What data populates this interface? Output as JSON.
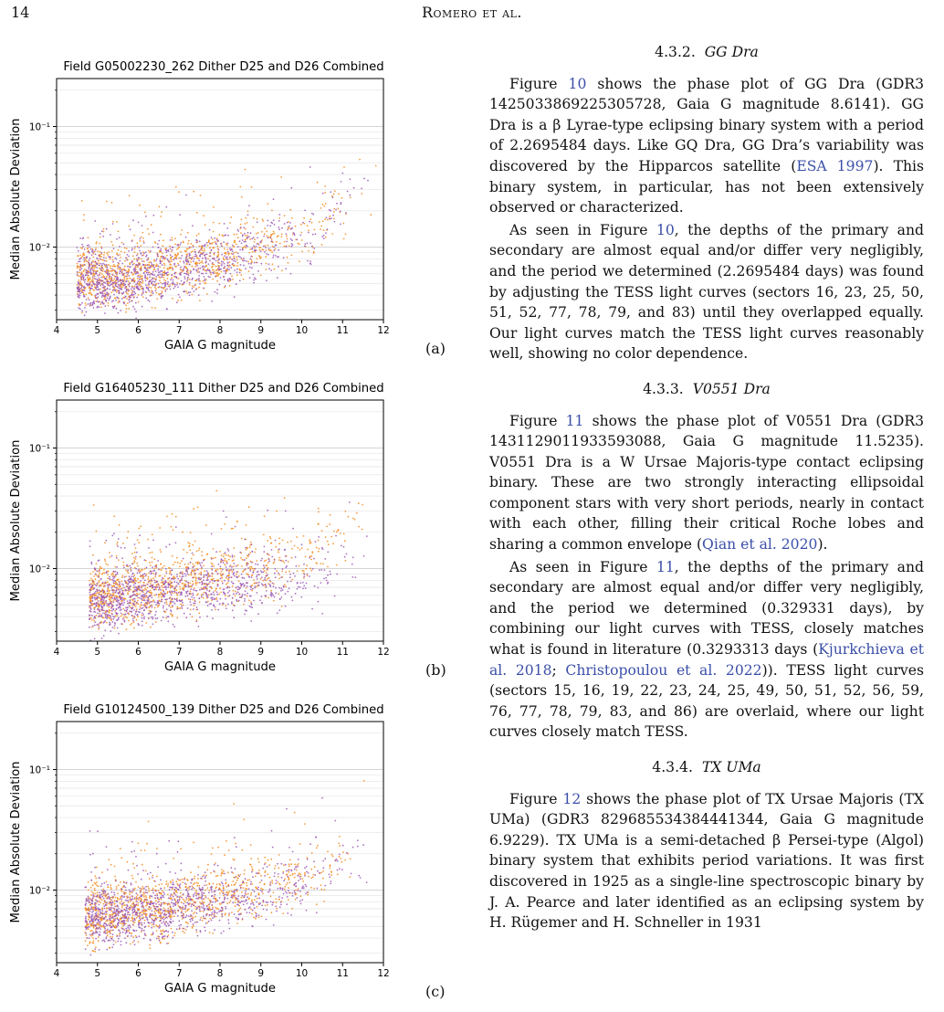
{
  "header": {
    "page_number": "14",
    "running_head": "Romero et al."
  },
  "colors": {
    "orange": "#f28c1e",
    "purple": "#9b59b6",
    "link": "#3b4fa8"
  },
  "figures": [
    {
      "label": "(a)",
      "title": "Field G05002230_262 Dither D25 and D26 Combined",
      "xlabel": "GAIA G magnitude",
      "ylabel": "Median Absolute Deviation",
      "xticks": [
        "4",
        "5",
        "6",
        "7",
        "8",
        "9",
        "10",
        "11",
        "12"
      ],
      "yticks": [
        "10⁻¹",
        "10⁻²"
      ]
    },
    {
      "label": "(b)",
      "title": "Field G16405230_111 Dither D25 and D26 Combined",
      "xlabel": "GAIA G magnitude",
      "ylabel": "Median Absolute Deviation",
      "xticks": [
        "4",
        "5",
        "6",
        "7",
        "8",
        "9",
        "10",
        "11",
        "12"
      ],
      "yticks": [
        "10⁻¹",
        "10⁻²"
      ]
    },
    {
      "label": "(c)",
      "title": "Field G10124500_139 Dither D25 and D26 Combined",
      "xlabel": "GAIA G magnitude",
      "ylabel": "Median Absolute Deviation",
      "xticks": [
        "4",
        "5",
        "6",
        "7",
        "8",
        "9",
        "10",
        "11",
        "12"
      ],
      "yticks": [
        "10⁻¹",
        "10⁻²"
      ]
    }
  ],
  "chart_data": [
    {
      "type": "scatter",
      "title": "Field G05002230_262 Dither D25 and D26 Combined",
      "xlabel": "GAIA G magnitude",
      "ylabel": "Median Absolute Deviation",
      "xlim": [
        4,
        12
      ],
      "ylim": [
        0.0025,
        0.25
      ],
      "yscale": "log",
      "grid": true,
      "series": [
        {
          "color": "#f28c1e",
          "x": [
            4.5,
            5.0,
            5.5,
            6.0,
            6.5,
            7.0,
            7.5,
            8.0,
            8.5,
            9.0,
            9.5,
            10.0,
            10.5,
            11.0,
            11.5,
            12.0
          ],
          "y": [
            0.0055,
            0.006,
            0.0055,
            0.006,
            0.0065,
            0.007,
            0.0075,
            0.008,
            0.009,
            0.01,
            0.011,
            0.013,
            0.016,
            0.022,
            0.03,
            0.045
          ]
        },
        {
          "color": "#9b59b6",
          "x": [
            4.5,
            5.0,
            5.5,
            6.0,
            6.5,
            7.0,
            7.5,
            8.0,
            8.5,
            9.0,
            9.5,
            10.0,
            10.5,
            11.0,
            11.5,
            12.0
          ],
          "y": [
            0.005,
            0.0055,
            0.005,
            0.0055,
            0.006,
            0.0065,
            0.007,
            0.0075,
            0.0085,
            0.0095,
            0.011,
            0.013,
            0.016,
            0.022,
            0.03,
            0.045
          ]
        }
      ]
    },
    {
      "type": "scatter",
      "title": "Field G16405230_111 Dither D25 and D26 Combined",
      "xlabel": "GAIA G magnitude",
      "ylabel": "Median Absolute Deviation",
      "xlim": [
        4,
        12
      ],
      "ylim": [
        0.0025,
        0.25
      ],
      "yscale": "log",
      "grid": true,
      "series": [
        {
          "color": "#f28c1e",
          "x": [
            4.8,
            5.5,
            6.0,
            6.5,
            7.0,
            7.5,
            8.0,
            8.5,
            9.0,
            9.5,
            10.0,
            10.5,
            11.0,
            11.5,
            12.0
          ],
          "y": [
            0.006,
            0.006,
            0.0065,
            0.007,
            0.0075,
            0.008,
            0.0085,
            0.009,
            0.01,
            0.011,
            0.012,
            0.014,
            0.017,
            0.021,
            0.026
          ]
        },
        {
          "color": "#9b59b6",
          "x": [
            4.8,
            5.5,
            6.0,
            6.5,
            7.0,
            7.5,
            8.0,
            8.5,
            9.0,
            9.5,
            10.0,
            10.5,
            11.0,
            11.5,
            12.0
          ],
          "y": [
            0.005,
            0.0055,
            0.006,
            0.0062,
            0.0065,
            0.0068,
            0.007,
            0.0072,
            0.0075,
            0.008,
            0.0085,
            0.009,
            0.01,
            0.012,
            0.014
          ]
        }
      ]
    },
    {
      "type": "scatter",
      "title": "Field G10124500_139 Dither D25 and D26 Combined",
      "xlabel": "GAIA G magnitude",
      "ylabel": "Median Absolute Deviation",
      "xlim": [
        4,
        12
      ],
      "ylim": [
        0.0025,
        0.25
      ],
      "yscale": "log",
      "grid": true,
      "series": [
        {
          "color": "#f28c1e",
          "x": [
            4.7,
            5.5,
            6.0,
            6.5,
            7.0,
            7.5,
            8.0,
            8.5,
            9.0,
            9.5,
            10.0,
            10.5,
            11.0,
            11.5,
            12.0
          ],
          "y": [
            0.006,
            0.0065,
            0.007,
            0.007,
            0.0075,
            0.008,
            0.0085,
            0.009,
            0.0095,
            0.0105,
            0.012,
            0.014,
            0.018,
            0.024,
            0.032
          ]
        },
        {
          "color": "#9b59b6",
          "x": [
            4.7,
            5.5,
            6.0,
            6.5,
            7.0,
            7.5,
            8.0,
            8.5,
            9.0,
            9.5,
            10.0,
            10.5,
            11.0,
            11.5,
            12.0
          ],
          "y": [
            0.006,
            0.0062,
            0.0065,
            0.0068,
            0.007,
            0.0075,
            0.008,
            0.0085,
            0.009,
            0.01,
            0.011,
            0.013,
            0.016,
            0.021,
            0.028
          ]
        }
      ]
    }
  ],
  "text": {
    "s432": {
      "num": "4.3.2.",
      "name": "GG Dra"
    },
    "p1": [
      {
        "t": "Figure "
      },
      {
        "t": "10",
        "link": true
      },
      {
        "t": " shows the phase plot of GG Dra (GDR3 1425033869225305728, Gaia G magnitude 8.6141). GG Dra is a β Lyrae-type eclipsing binary system with a period of 2.2695484 days. Like GQ Dra, GG Dra’s variability was discovered by the Hipparcos satellite ("
      },
      {
        "t": "ESA 1997",
        "link": true
      },
      {
        "t": "). This binary system, in particular, has not been extensively observed or characterized."
      }
    ],
    "p2": [
      {
        "t": "As seen in Figure "
      },
      {
        "t": "10",
        "link": true
      },
      {
        "t": ", the depths of the primary and secondary are almost equal and/or differ very negligibly, and the period we determined (2.2695484 days) was found by adjusting the TESS light curves (sectors 16, 23, 25, 50, 51, 52, 77, 78, 79, and 83) until they overlapped equally. Our light curves match the TESS light curves reasonably well, showing no color dependence."
      }
    ],
    "s433": {
      "num": "4.3.3.",
      "name": "V0551 Dra"
    },
    "p3": [
      {
        "t": "Figure "
      },
      {
        "t": "11",
        "link": true
      },
      {
        "t": " shows the phase plot of V0551 Dra (GDR3 1431129011933593088, Gaia G magnitude 11.5235). V0551 Dra is a W Ursae Majoris-type contact eclipsing binary. These are two strongly interacting ellipsoidal component stars with very short periods, nearly in contact with each other, filling their critical Roche lobes and sharing a common envelope ("
      },
      {
        "t": "Qian et al. 2020",
        "link": true
      },
      {
        "t": ")."
      }
    ],
    "p4": [
      {
        "t": "As seen in Figure "
      },
      {
        "t": "11",
        "link": true
      },
      {
        "t": ", the depths of the primary and secondary are almost equal and/or differ very negligibly, and the period we determined (0.329331 days), by combining our light curves with TESS, closely matches what is found in literature (0.3293313 days ("
      },
      {
        "t": "Kjurkchieva et al. 2018",
        "link": true
      },
      {
        "t": "; "
      },
      {
        "t": "Christopoulou et al. 2022",
        "link": true
      },
      {
        "t": ")). TESS light curves (sectors 15, 16, 19, 22, 23, 24, 25, 49, 50, 51, 52, 56, 59, 76, 77, 78, 79, 83, and 86) are overlaid, where our light curves closely match TESS."
      }
    ],
    "s434": {
      "num": "4.3.4.",
      "name": "TX UMa"
    },
    "p5": [
      {
        "t": "Figure "
      },
      {
        "t": "12",
        "link": true
      },
      {
        "t": " shows the phase plot of TX Ursae Majoris (TX UMa) (GDR3 829685534384441344, Gaia G magnitude 6.9229). TX UMa is a semi-detached β Persei-type (Algol) binary system that exhibits period variations. It was first discovered in 1925 as a single-line spectroscopic binary by J. A. Pearce and later identified as an eclipsing system by H. Rügemer and H. Schneller in 1931"
      }
    ]
  }
}
